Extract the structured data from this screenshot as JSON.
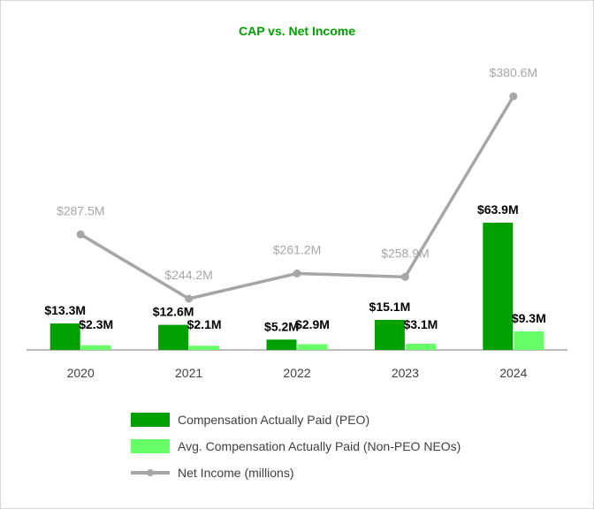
{
  "chart_data": {
    "type": "bar",
    "title": "CAP vs. Net Income",
    "categories": [
      "2020",
      "2021",
      "2022",
      "2023",
      "2024"
    ],
    "series": [
      {
        "name": "Compensation Actually Paid (PEO)",
        "kind": "bar",
        "color": "#00a000",
        "values": [
          13.3,
          12.6,
          5.2,
          15.1,
          63.9
        ],
        "labels": [
          "$13.3M",
          "$12.6M",
          "$5.2M",
          "$15.1M",
          "$63.9M"
        ]
      },
      {
        "name": "Avg. Compensation Actually Paid (Non-PEO NEOs)",
        "kind": "bar",
        "color": "#66ff66",
        "values": [
          2.3,
          2.1,
          2.9,
          3.1,
          9.3
        ],
        "labels": [
          "$2.3M",
          "$2.1M",
          "$2.9M",
          "$3.1M",
          "$9.3M"
        ]
      },
      {
        "name": "Net Income (millions)",
        "kind": "line",
        "color": "#a6a6a6",
        "values": [
          287.5,
          244.2,
          261.2,
          258.9,
          380.6
        ],
        "labels": [
          "$287.5M",
          "$244.2M",
          "$261.2M",
          "$258.9M",
          "$380.6M"
        ]
      }
    ],
    "title_color": "#00a000",
    "legend_position": "bottom"
  }
}
